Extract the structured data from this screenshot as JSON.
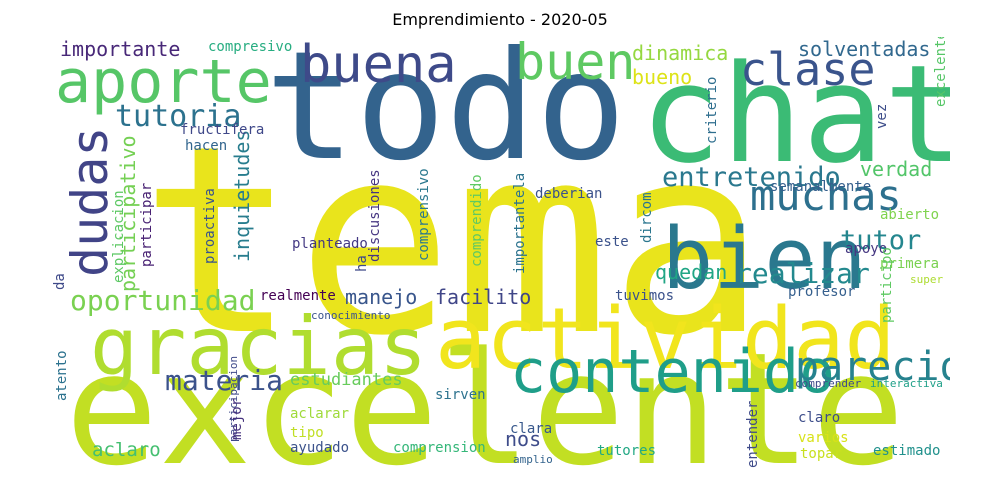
{
  "title": "Emprendimiento - 2020-05",
  "words": [
    {
      "text": "tema",
      "color": "#e9e41c"
    },
    {
      "text": "excelente",
      "color": "#c2df23"
    },
    {
      "text": "todo",
      "color": "#33638d"
    },
    {
      "text": "chat",
      "color": "#3bbb75"
    },
    {
      "text": "actividad",
      "color": "#f1e51d"
    },
    {
      "text": "gracias",
      "color": "#b0dd2f"
    },
    {
      "text": "bien",
      "color": "#2a788e"
    },
    {
      "text": "aporte",
      "color": "#56c667"
    },
    {
      "text": "contenido",
      "color": "#1f9e89"
    },
    {
      "text": "buena",
      "color": "#3e4a89"
    },
    {
      "text": "buen",
      "color": "#5ec962"
    },
    {
      "text": "clase",
      "color": "#3a548c"
    },
    {
      "text": "dudas",
      "color": "#414487"
    },
    {
      "text": "muchas",
      "color": "#2d708e"
    },
    {
      "text": "parecio",
      "color": "#26828e"
    },
    {
      "text": "oportunidad",
      "color": "#7ad151"
    },
    {
      "text": "tutoria",
      "color": "#2c728e"
    },
    {
      "text": "entretenido",
      "color": "#2a788e"
    },
    {
      "text": "materia",
      "color": "#3b528b"
    },
    {
      "text": "realizar",
      "color": "#23898e"
    },
    {
      "text": "tutor",
      "color": "#24868e"
    },
    {
      "text": "participativo",
      "color": "#75d054"
    },
    {
      "text": "importante",
      "color": "#482878"
    },
    {
      "text": "solventadas",
      "color": "#31688e"
    },
    {
      "text": "dinamica",
      "color": "#95d840"
    },
    {
      "text": "bueno",
      "color": "#dde318"
    },
    {
      "text": "verdad",
      "color": "#52c569"
    },
    {
      "text": "inquietudes",
      "color": "#287d8e"
    },
    {
      "text": "quedan",
      "color": "#21a685"
    },
    {
      "text": "facilito",
      "color": "#404688"
    },
    {
      "text": "manejo",
      "color": "#39568c"
    },
    {
      "text": "estudiantes",
      "color": "#67cc5c"
    },
    {
      "text": "aclaro",
      "color": "#44bf70"
    },
    {
      "text": "nos",
      "color": "#3e4c8a"
    },
    {
      "text": "compresivo",
      "color": "#27ad81"
    },
    {
      "text": "fructifera",
      "color": "#3f4889"
    },
    {
      "text": "hacen",
      "color": "#32658e"
    },
    {
      "text": "criterio",
      "color": "#2e6e8e"
    },
    {
      "text": "vez",
      "color": "#3d4d8a"
    },
    {
      "text": "excelente",
      "color": "#56c667"
    },
    {
      "text": "semanalmente",
      "color": "#355f8d"
    },
    {
      "text": "abierto",
      "color": "#7fd34e"
    },
    {
      "text": "deberian",
      "color": "#3b528b"
    },
    {
      "text": "participar",
      "color": "#482173"
    },
    {
      "text": "explicacion",
      "color": "#5cc863"
    },
    {
      "text": "proactiva",
      "color": "#3a548c"
    },
    {
      "text": "discusiones",
      "color": "#453581"
    },
    {
      "text": "planteado",
      "color": "#443983"
    },
    {
      "text": "ha",
      "color": "#3e4a89"
    },
    {
      "text": "comprensivo",
      "color": "#2a788e"
    },
    {
      "text": "comprendido",
      "color": "#5ec962"
    },
    {
      "text": "importantela",
      "color": "#2c738e"
    },
    {
      "text": "dircom",
      "color": "#2a768e"
    },
    {
      "text": "este",
      "color": "#3b528b"
    },
    {
      "text": "apoyo",
      "color": "#453781"
    },
    {
      "text": "primera",
      "color": "#7ad151"
    },
    {
      "text": "participo",
      "color": "#5ec962"
    },
    {
      "text": "super",
      "color": "#addc30"
    },
    {
      "text": "da",
      "color": "#3e4989"
    },
    {
      "text": "realmente",
      "color": "#440154"
    },
    {
      "text": "conocimiento",
      "color": "#3a548c"
    },
    {
      "text": "tuvimos",
      "color": "#3b528b"
    },
    {
      "text": "profesor",
      "color": "#355f8d"
    },
    {
      "text": "atento",
      "color": "#2c728e"
    },
    {
      "text": "sirven",
      "color": "#2c728e"
    },
    {
      "text": "comprender",
      "color": "#3e4a89"
    },
    {
      "text": "interactiva",
      "color": "#1fa088"
    },
    {
      "text": "participacion",
      "color": "#3e4989"
    },
    {
      "text": "mejor",
      "color": "#46327e"
    },
    {
      "text": "aclarar",
      "color": "#9fda3a"
    },
    {
      "text": "tipo",
      "color": "#c0df25"
    },
    {
      "text": "ayudado",
      "color": "#3b528b"
    },
    {
      "text": "comprension",
      "color": "#35b779"
    },
    {
      "text": "clara",
      "color": "#38588c"
    },
    {
      "text": "amplio",
      "color": "#33638d"
    },
    {
      "text": "entender",
      "color": "#3e4a89"
    },
    {
      "text": "claro",
      "color": "#3d4d8a"
    },
    {
      "text": "varios",
      "color": "#d8e219"
    },
    {
      "text": "tutores",
      "color": "#22a884"
    },
    {
      "text": "topar",
      "color": "#c8e020"
    },
    {
      "text": "estimado",
      "color": "#21918c"
    }
  ]
}
